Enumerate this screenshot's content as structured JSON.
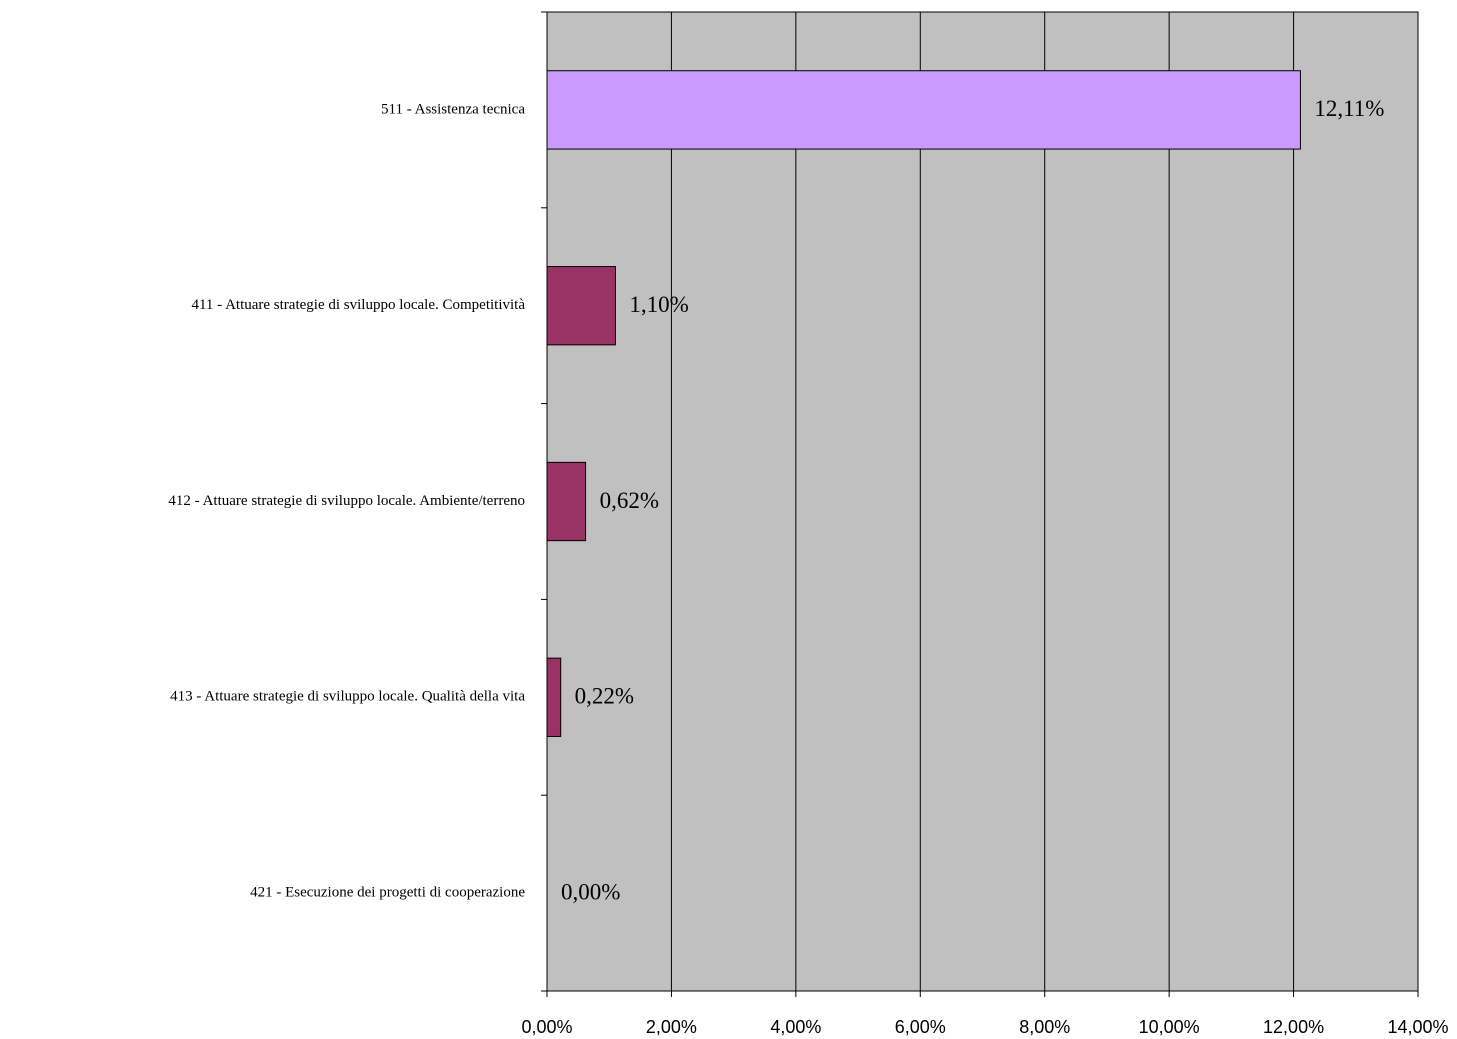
{
  "chart_data": {
    "type": "hbar",
    "categories": [
      "511 -  Assistenza tecnica",
      "411 -  Attuare strategie di sviluppo locale. Competitività",
      "412 -  Attuare strategie di sviluppo locale. Ambiente/terreno",
      "413 -  Attuare strategie di sviluppo locale. Qualità della vita",
      "421 -  Esecuzione dei progetti di cooperazione"
    ],
    "values": [
      12.11,
      1.1,
      0.62,
      0.22,
      0.0
    ],
    "value_labels": [
      "12,11%",
      "1,10%",
      "0,62%",
      "0,22%",
      "0,00%"
    ],
    "colors": [
      "#cc99ff",
      "#993366",
      "#993366",
      "#993366",
      "#993366"
    ],
    "xlim": [
      0,
      14
    ],
    "xticks": [
      {
        "value": 0,
        "label": "0,00%"
      },
      {
        "value": 2,
        "label": "2,00%"
      },
      {
        "value": 4,
        "label": "4,00%"
      },
      {
        "value": 6,
        "label": "6,00%"
      },
      {
        "value": 8,
        "label": "8,00%"
      },
      {
        "value": 10,
        "label": "10,00%"
      },
      {
        "value": 12,
        "label": "12,00%"
      },
      {
        "value": 14,
        "label": "14,00%"
      }
    ],
    "grid": true,
    "plot_background": "#c0c0c0"
  }
}
